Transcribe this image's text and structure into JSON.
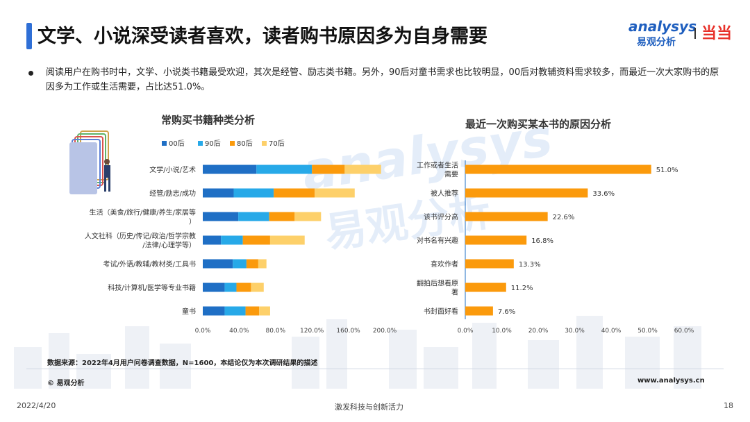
{
  "header": {
    "title": "文学、小说深受读者喜欢，读者购书原因多为自身需要",
    "logo_analysys_en": "analysys",
    "logo_analysys_cn": "易观分析",
    "logo_dangdang": "当当"
  },
  "summary": "阅读用户在购书时中，文学、小说类书籍最受欢迎，其次是经管、励志类书籍。另外，90后对童书需求也比较明显，00后对教辅资料需求较多，而最近一次大家购书的原因多为工作或生活需要，占比达51.0%。",
  "watermark": {
    "line1": "analysys",
    "line2": "易观分析"
  },
  "colors": {
    "accent": "#2f6fd6",
    "s00": "#1f6fc5",
    "s90": "#27a9e8",
    "s80": "#fb9a0c",
    "s70": "#fdd06a",
    "reason_bar": "#fb9a0c",
    "reason_axis": "#1f6fc5"
  },
  "chart_data": [
    {
      "type": "bar",
      "orientation": "horizontal",
      "stacked": true,
      "title": "常购买书籍种类分析",
      "categories": [
        "文学/小说/艺术",
        "经管/励志/成功",
        "生活（美食/旅行/健康/养生/家居等）",
        "人文社科（历史/传记/政治/哲学宗教/法律/心理学等）",
        "考试/外语/教辅/教材类/工具书",
        "科技/计算机/医学等专业书籍",
        "童书"
      ],
      "series": [
        {
          "name": "00后",
          "values": [
            59,
            34,
            39,
            20,
            33,
            24,
            24
          ]
        },
        {
          "name": "90后",
          "values": [
            61,
            44,
            34,
            24,
            15,
            13,
            23
          ]
        },
        {
          "name": "80后",
          "values": [
            36,
            45,
            28,
            30,
            13,
            16,
            15
          ]
        },
        {
          "name": "70后",
          "values": [
            40,
            44,
            29,
            38,
            9,
            14,
            12
          ]
        }
      ],
      "xlim": [
        0,
        200
      ],
      "xticks": [
        "0.0%",
        "40.0%",
        "80.0%",
        "120.0%",
        "160.0%",
        "200.0%"
      ],
      "legend": "top"
    },
    {
      "type": "bar",
      "orientation": "horizontal",
      "title": "最近一次购买某本书的原因分析",
      "categories": [
        "工作或者生活需要",
        "被人推荐",
        "该书评分高",
        "对书名有兴趣",
        "喜欢作者",
        "翻拍后想看原著",
        "书封面好看"
      ],
      "values": [
        51.0,
        33.6,
        22.6,
        16.8,
        13.3,
        11.2,
        7.6
      ],
      "labels": [
        "51.0%",
        "33.6%",
        "22.6%",
        "16.8%",
        "13.3%",
        "11.2%",
        "7.6%"
      ],
      "xlim": [
        0,
        60
      ],
      "xticks": [
        "0.0%",
        "10.0%",
        "20.0%",
        "30.0%",
        "40.0%",
        "50.0%",
        "60.0%"
      ]
    }
  ],
  "footer": {
    "source": "数据来源：2022年4月用户问卷调查数据，N=1600，本结论仅为本次调研结果的描述",
    "copyright": "© 易观分析",
    "website": "www.analysys.cn",
    "date": "2022/4/20",
    "slogan": "激发科技与创新活力",
    "page": "18"
  }
}
